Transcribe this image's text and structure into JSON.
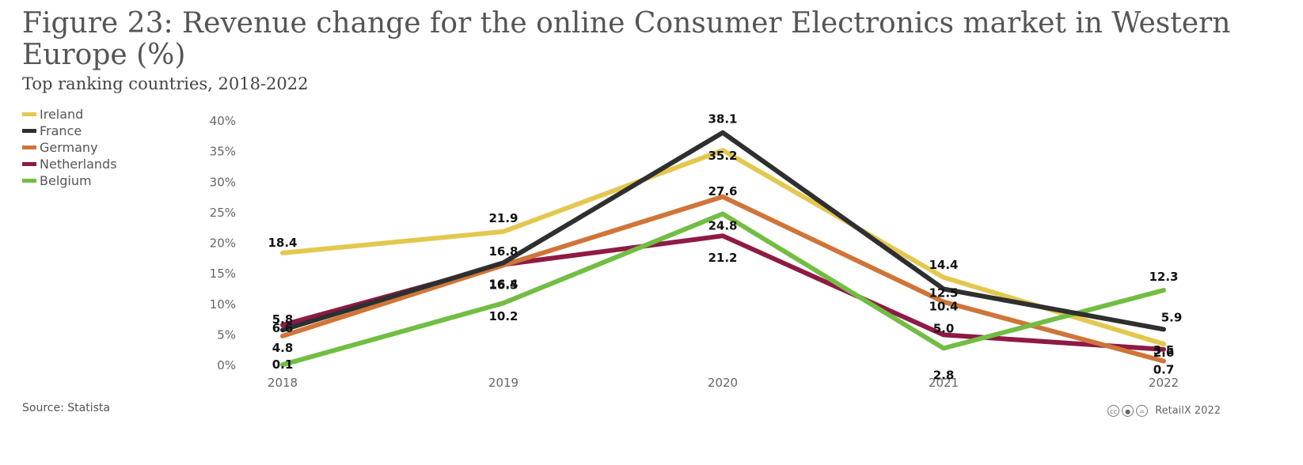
{
  "header": {
    "title": "Figure 23: Revenue change for the online Consumer Electronics market in Western Europe (%)",
    "subtitle": "Top ranking countries, 2018-2022"
  },
  "footer": {
    "source": "Source: Statista",
    "credit": "RetailX 2022",
    "license_icons": [
      "cc",
      "by",
      "nd"
    ]
  },
  "chart_data": {
    "type": "line",
    "title": "Figure 23: Revenue change for the online Consumer Electronics market in Western Europe (%)",
    "subtitle": "Top ranking countries, 2018-2022",
    "x": [
      "2018",
      "2019",
      "2020",
      "2021",
      "2022"
    ],
    "y_ticks": [
      "0%",
      "5%",
      "10%",
      "15%",
      "20%",
      "25%",
      "30%",
      "35%",
      "40%"
    ],
    "ylim": [
      0,
      40
    ],
    "grid": false,
    "legend_position": "top-left",
    "series": [
      {
        "name": "Ireland",
        "color": "#e3c84f",
        "values": [
          18.4,
          21.9,
          35.2,
          14.4,
          3.5
        ]
      },
      {
        "name": "France",
        "color": "#2f2f2f",
        "values": [
          5.8,
          16.8,
          38.1,
          12.5,
          5.9
        ]
      },
      {
        "name": "Germany",
        "color": "#d0753a",
        "values": [
          4.8,
          16.4,
          27.6,
          10.4,
          0.7
        ]
      },
      {
        "name": "Netherlands",
        "color": "#8e1a45",
        "values": [
          6.6,
          16.5,
          21.2,
          5.0,
          2.6
        ]
      },
      {
        "name": "Belgium",
        "color": "#72bd43",
        "values": [
          0.1,
          10.2,
          24.8,
          2.8,
          12.3
        ]
      }
    ]
  }
}
